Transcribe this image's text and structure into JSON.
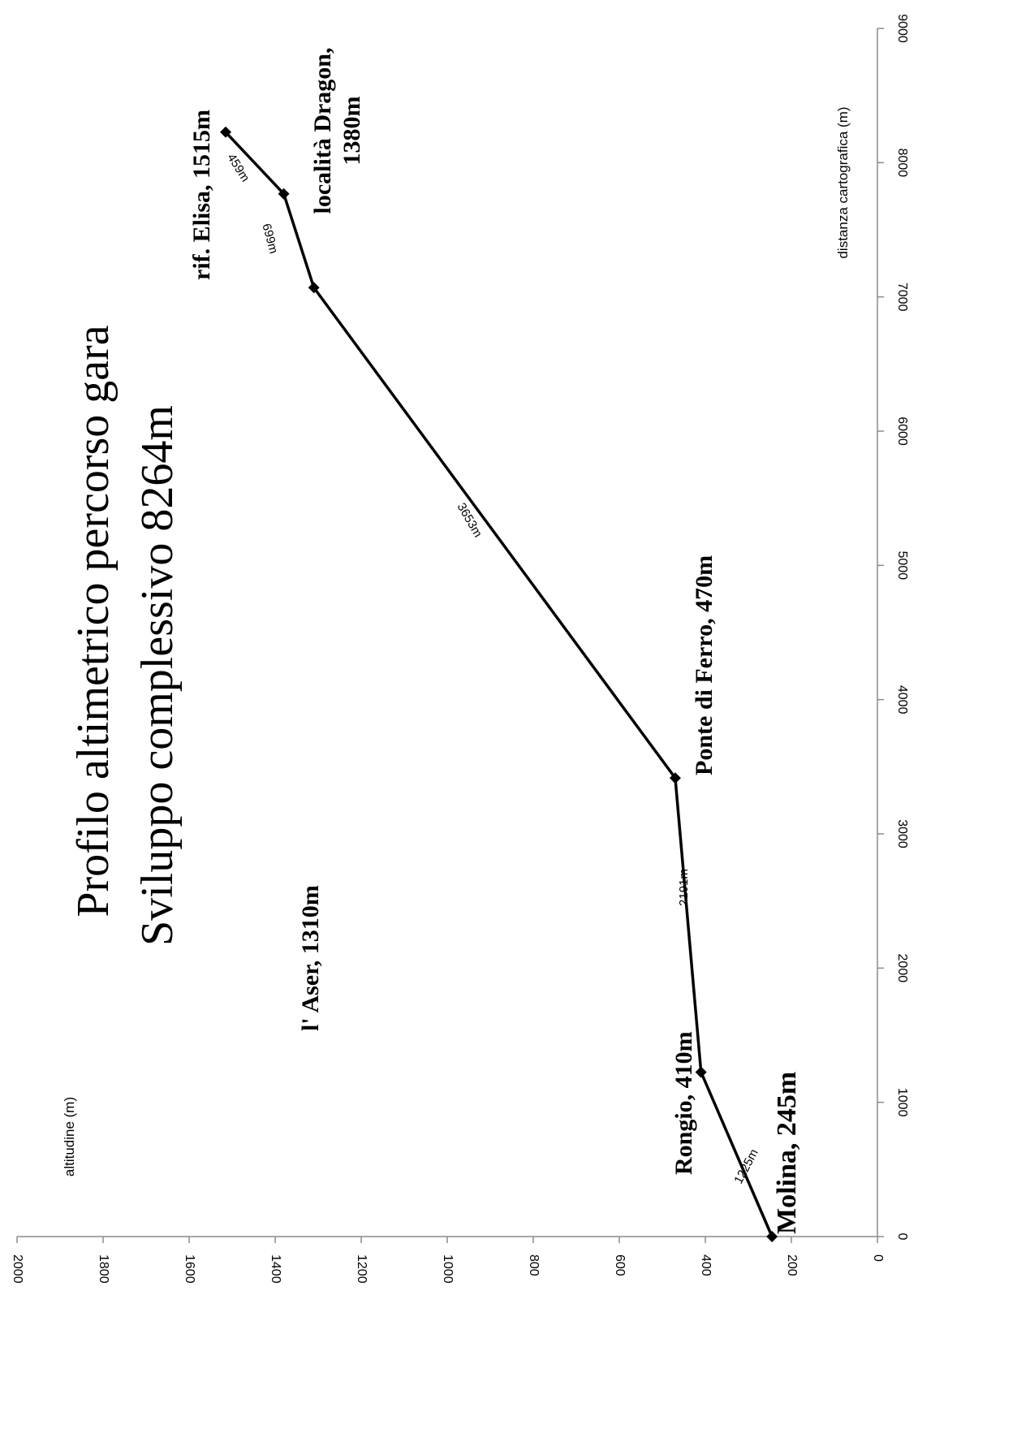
{
  "chart_data": {
    "type": "line",
    "orientation": "rotated-90-clockwise",
    "title": [
      "Profilo altimetrico  percorso gara",
      "Sviluppo complessivo 8264m"
    ],
    "xlabel": "distanza cartografica (m)",
    "ylabel": "altitudine (m)",
    "xlim": [
      0,
      9000
    ],
    "ylim": [
      0,
      2000
    ],
    "x_ticks": [
      0,
      1000,
      2000,
      3000,
      4000,
      5000,
      6000,
      7000,
      8000,
      9000
    ],
    "y_ticks": [
      0,
      200,
      400,
      600,
      800,
      1000,
      1200,
      1400,
      1600,
      1800,
      2000
    ],
    "grid": false,
    "legend": "none",
    "color": "#000000",
    "points": [
      {
        "x": 0,
        "y": 245,
        "label": "Molina, 245m"
      },
      {
        "x": 1225,
        "y": 410,
        "label": "Rongio, 410m"
      },
      {
        "x": 3416,
        "y": 470,
        "label": "Ponte di Ferro, 470m"
      },
      {
        "x": 7069,
        "y": 1310,
        "label": "l' Aser, 1310m"
      },
      {
        "x": 7768,
        "y": 1380,
        "label": [
          "località Dragon,",
          "1380m"
        ]
      },
      {
        "x": 8227,
        "y": 1515,
        "label": "rif.  Elisa, 1515m"
      }
    ],
    "segment_labels": [
      "1225m",
      "2191m",
      "3653m",
      "699m",
      "459m"
    ]
  }
}
